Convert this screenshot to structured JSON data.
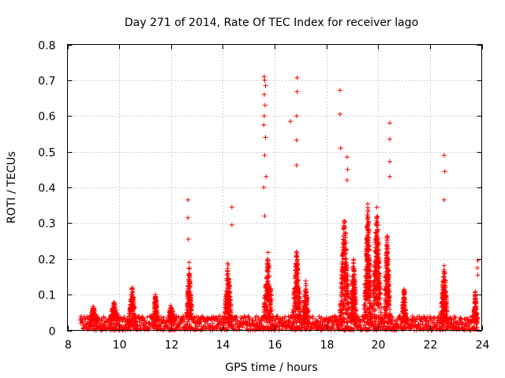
{
  "chart_data": {
    "type": "scatter",
    "title": "Day 271 of 2014, Rate Of TEC Index for receiver lago",
    "xlabel": "GPS time / hours",
    "ylabel": "ROTI / TECUs",
    "xlim": [
      8,
      24
    ],
    "ylim": [
      0,
      0.8
    ],
    "xticks": [
      "8",
      "10",
      "12",
      "14",
      "16",
      "18",
      "20",
      "22",
      "24"
    ],
    "yticks": [
      "0",
      "0.1",
      "0.2",
      "0.3",
      "0.4",
      "0.5",
      "0.6",
      "0.7",
      "0.8"
    ],
    "grid": true,
    "marker": "+",
    "series": [
      {
        "name": "ROTI",
        "color": "#ff0000",
        "background": {
          "x_start": 8.5,
          "x_end": 23.85,
          "y_min": 0.0,
          "y_max": 0.04
        },
        "clusters": [
          {
            "center": 9.0,
            "width": 0.15,
            "peak": 0.05
          },
          {
            "center": 9.8,
            "width": 0.2,
            "peak": 0.06
          },
          {
            "center": 10.5,
            "width": 0.15,
            "peak": 0.105
          },
          {
            "center": 11.4,
            "width": 0.1,
            "peak": 0.09
          },
          {
            "center": 12.0,
            "width": 0.15,
            "peak": 0.06
          },
          {
            "center": 12.7,
            "width": 0.12,
            "peak": 0.16
          },
          {
            "center": 14.2,
            "width": 0.15,
            "peak": 0.175
          },
          {
            "center": 15.75,
            "width": 0.2,
            "peak": 0.2
          },
          {
            "center": 16.85,
            "width": 0.18,
            "peak": 0.21
          },
          {
            "center": 17.2,
            "width": 0.12,
            "peak": 0.12
          },
          {
            "center": 18.7,
            "width": 0.2,
            "peak": 0.32
          },
          {
            "center": 19.05,
            "width": 0.12,
            "peak": 0.19
          },
          {
            "center": 19.6,
            "width": 0.15,
            "peak": 0.36
          },
          {
            "center": 19.95,
            "width": 0.18,
            "peak": 0.35
          },
          {
            "center": 20.35,
            "width": 0.12,
            "peak": 0.26
          },
          {
            "center": 21.0,
            "width": 0.1,
            "peak": 0.1
          },
          {
            "center": 22.55,
            "width": 0.15,
            "peak": 0.17
          },
          {
            "center": 23.75,
            "width": 0.08,
            "peak": 0.09
          }
        ],
        "spikes": [
          [
            12.65,
            0.365
          ],
          [
            12.65,
            0.315
          ],
          [
            12.67,
            0.255
          ],
          [
            12.7,
            0.19
          ],
          [
            14.35,
            0.345
          ],
          [
            14.35,
            0.295
          ],
          [
            15.6,
            0.71
          ],
          [
            15.62,
            0.7
          ],
          [
            15.65,
            0.685
          ],
          [
            15.6,
            0.66
          ],
          [
            15.63,
            0.63
          ],
          [
            15.6,
            0.6
          ],
          [
            15.58,
            0.575
          ],
          [
            15.65,
            0.54
          ],
          [
            15.62,
            0.49
          ],
          [
            15.67,
            0.43
          ],
          [
            15.58,
            0.4
          ],
          [
            15.62,
            0.32
          ],
          [
            16.62,
            0.585
          ],
          [
            16.87,
            0.707
          ],
          [
            16.87,
            0.668
          ],
          [
            16.85,
            0.6
          ],
          [
            16.85,
            0.532
          ],
          [
            16.85,
            0.462
          ],
          [
            18.53,
            0.672
          ],
          [
            18.53,
            0.605
          ],
          [
            18.55,
            0.51
          ],
          [
            18.8,
            0.485
          ],
          [
            18.82,
            0.45
          ],
          [
            18.8,
            0.42
          ],
          [
            20.45,
            0.58
          ],
          [
            20.45,
            0.535
          ],
          [
            20.45,
            0.472
          ],
          [
            20.45,
            0.43
          ],
          [
            22.55,
            0.49
          ],
          [
            22.57,
            0.445
          ],
          [
            22.55,
            0.365
          ],
          [
            23.85,
            0.195
          ],
          [
            23.83,
            0.175
          ],
          [
            23.85,
            0.155
          ]
        ]
      }
    ]
  }
}
